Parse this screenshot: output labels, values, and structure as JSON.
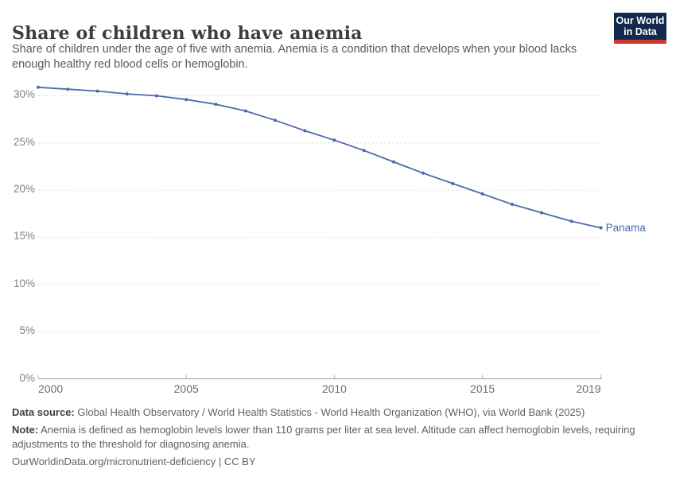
{
  "header": {
    "title": "Share of children who have anemia",
    "subtitle": "Share of children under the age of five with anemia. Anemia is a condition that develops when your blood lacks\nenough healthy red blood cells or hemoglobin."
  },
  "logo": {
    "line1": "Our World",
    "line2": "in Data",
    "bg_color": "#12294d",
    "accent_color": "#cc392f",
    "text_color": "#ffffff"
  },
  "chart_data": {
    "type": "line",
    "title": "Share of children who have anemia",
    "x": [
      2000,
      2001,
      2002,
      2003,
      2004,
      2005,
      2006,
      2007,
      2008,
      2009,
      2010,
      2011,
      2012,
      2013,
      2014,
      2015,
      2016,
      2017,
      2018,
      2019
    ],
    "series": [
      {
        "name": "Panama",
        "color": "#4c6bab",
        "values": [
          30.9,
          30.7,
          30.5,
          30.2,
          30.0,
          29.6,
          29.1,
          28.4,
          27.4,
          26.3,
          25.3,
          24.2,
          23.0,
          21.8,
          20.7,
          19.6,
          18.5,
          17.6,
          16.7,
          16.0
        ]
      }
    ],
    "x_ticks": [
      2000,
      2005,
      2010,
      2015,
      2019
    ],
    "y_ticks": [
      0,
      5,
      10,
      15,
      20,
      25,
      30
    ],
    "y_unit": "%",
    "xlim": [
      2000,
      2019
    ],
    "ylim": [
      0,
      31.3
    ],
    "grid": "horizontal-dashed",
    "grid_color": "#dedede",
    "axis_color": "#9a9a9a",
    "legend": "end-of-line-label"
  },
  "footer": {
    "data_source_label": "Data source:",
    "data_source_text": " Global Health Observatory / World Health Statistics - World Health Organization (WHO), via World Bank (2025)",
    "note_label": "Note:",
    "note_text": " Anemia is defined as hemoglobin levels lower than 110 grams per liter at sea level. Altitude can affect hemoglobin levels, requiring\nadjustments to the threshold for diagnosing anemia.",
    "link_text": "OurWorldinData.org/micronutrient-deficiency | CC BY"
  }
}
